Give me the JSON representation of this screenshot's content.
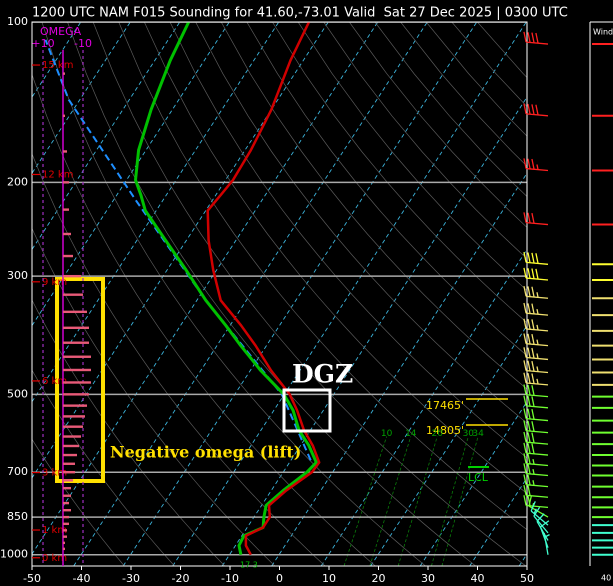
{
  "chart_data": {
    "type": "skew-t",
    "title": "1200 UTC NAM F015 Sounding for 41.60,-73.01 Valid  Sat 27 Dec 2025 | 0300 UTC",
    "xlim": [
      -50,
      50
    ],
    "xticks": [
      -50,
      -40,
      -30,
      -20,
      -10,
      0,
      10,
      20,
      30,
      40,
      50
    ],
    "ylim": [
      1050,
      100
    ],
    "yticks": [
      100,
      200,
      300,
      500,
      700,
      850,
      1000
    ],
    "grid": true,
    "height_ticks": [
      {
        "value": 15,
        "label": "15 km"
      },
      {
        "value": 12,
        "label": "12 km"
      },
      {
        "value": 9,
        "label": "9 km"
      },
      {
        "value": 6,
        "label": "6 km"
      },
      {
        "value": 3,
        "label": "3 km"
      },
      {
        "value": 1,
        "label": "1 km"
      },
      {
        "value": 0,
        "label": "0 km"
      }
    ],
    "profiles": {
      "pressure": [
        1000,
        961,
        921,
        889,
        850,
        808,
        758,
        700,
        671,
        624,
        584,
        536,
        500,
        451,
        405,
        371,
        333,
        292,
        257,
        226,
        211,
        198,
        174,
        146,
        118,
        100
      ],
      "temperature": [
        -5.7,
        -7.9,
        -9.2,
        -6.8,
        -6.8,
        -8.5,
        -7.0,
        -4.2,
        -4.0,
        -7.5,
        -11.3,
        -15.3,
        -18.9,
        -25.8,
        -32.2,
        -37.8,
        -45.2,
        -50.7,
        -55.5,
        -59.6,
        -59.0,
        -58.5,
        -58.8,
        -60.0,
        -62.6,
        -63.9
      ],
      "dewpoint": [
        -7.7,
        -9.3,
        -9.6,
        -6.8,
        -8.0,
        -9.1,
        -7.6,
        -5.2,
        -4.6,
        -8.3,
        -12.3,
        -16.1,
        -20.1,
        -27.9,
        -35.2,
        -40.9,
        -48.2,
        -56.2,
        -64.2,
        -72.2,
        -75.2,
        -78.2,
        -81.5,
        -84.3,
        -86.9,
        -88.2
      ],
      "temperature_color": "#d00000",
      "dewpoint_color": "#00c000"
    },
    "parcel": {
      "pressure": [
        665,
        500,
        333,
        216,
        140,
        108
      ],
      "temperature": [
        -6.0,
        -20.5,
        -48.2,
        -75.5,
        -102.2,
        -114.8
      ],
      "color": "#1e8fff"
    },
    "omega": {
      "label": "OMEGA",
      "ticks": [
        {
          "value": 10,
          "label": "+10"
        },
        -10
      ],
      "color": "#e85a78",
      "pressure": [
        1000,
        975,
        950,
        925,
        900,
        875,
        850,
        825,
        800,
        775,
        750,
        725,
        700,
        675,
        650,
        625,
        600,
        575,
        550,
        525,
        500,
        475,
        450,
        425,
        400,
        375,
        350,
        325,
        300,
        275,
        250,
        225,
        200,
        175,
        150,
        125,
        100
      ],
      "values": [
        0,
        -1,
        -1,
        -2,
        -2,
        -3,
        -3,
        -4,
        -3,
        -4,
        -4,
        -5,
        -6,
        -6,
        -7,
        -8,
        -9,
        -10,
        -11,
        -12,
        -13,
        -14,
        -14,
        -14,
        -13,
        -13,
        -12,
        -10,
        -9,
        -5,
        -4,
        -3,
        -3,
        -2,
        -1,
        -1,
        0
      ]
    },
    "winds": {
      "pressure": [
        110,
        150,
        190,
        240,
        285,
        305,
        330,
        355,
        380,
        405,
        430,
        455,
        480,
        505,
        530,
        560,
        590,
        620,
        650,
        680,
        710,
        745,
        780,
        815,
        850,
        880,
        910,
        940,
        970,
        1000
      ],
      "speed": [
        40,
        40,
        35,
        30,
        40,
        40,
        35,
        35,
        35,
        35,
        35,
        35,
        35,
        30,
        30,
        30,
        30,
        30,
        30,
        25,
        25,
        25,
        20,
        20,
        15,
        15,
        10,
        10,
        10,
        5
      ],
      "direction": [
        275,
        275,
        275,
        275,
        275,
        275,
        275,
        275,
        275,
        275,
        275,
        275,
        275,
        275,
        275,
        275,
        275,
        275,
        275,
        275,
        275,
        275,
        275,
        275,
        300,
        310,
        320,
        330,
        340,
        350
      ]
    },
    "mixing_ratios": [
      10,
      14,
      20,
      30,
      34
    ],
    "dgz_label": "DGZ",
    "omega_note": "Negative omega (lift)",
    "dgz_heights": [
      "17465'",
      "14805'"
    ],
    "lcl_label": "LCL",
    "bottom_note": "17 3",
    "wind_panel_title": "Wind (knots)",
    "wind_panel_tick": 40
  }
}
